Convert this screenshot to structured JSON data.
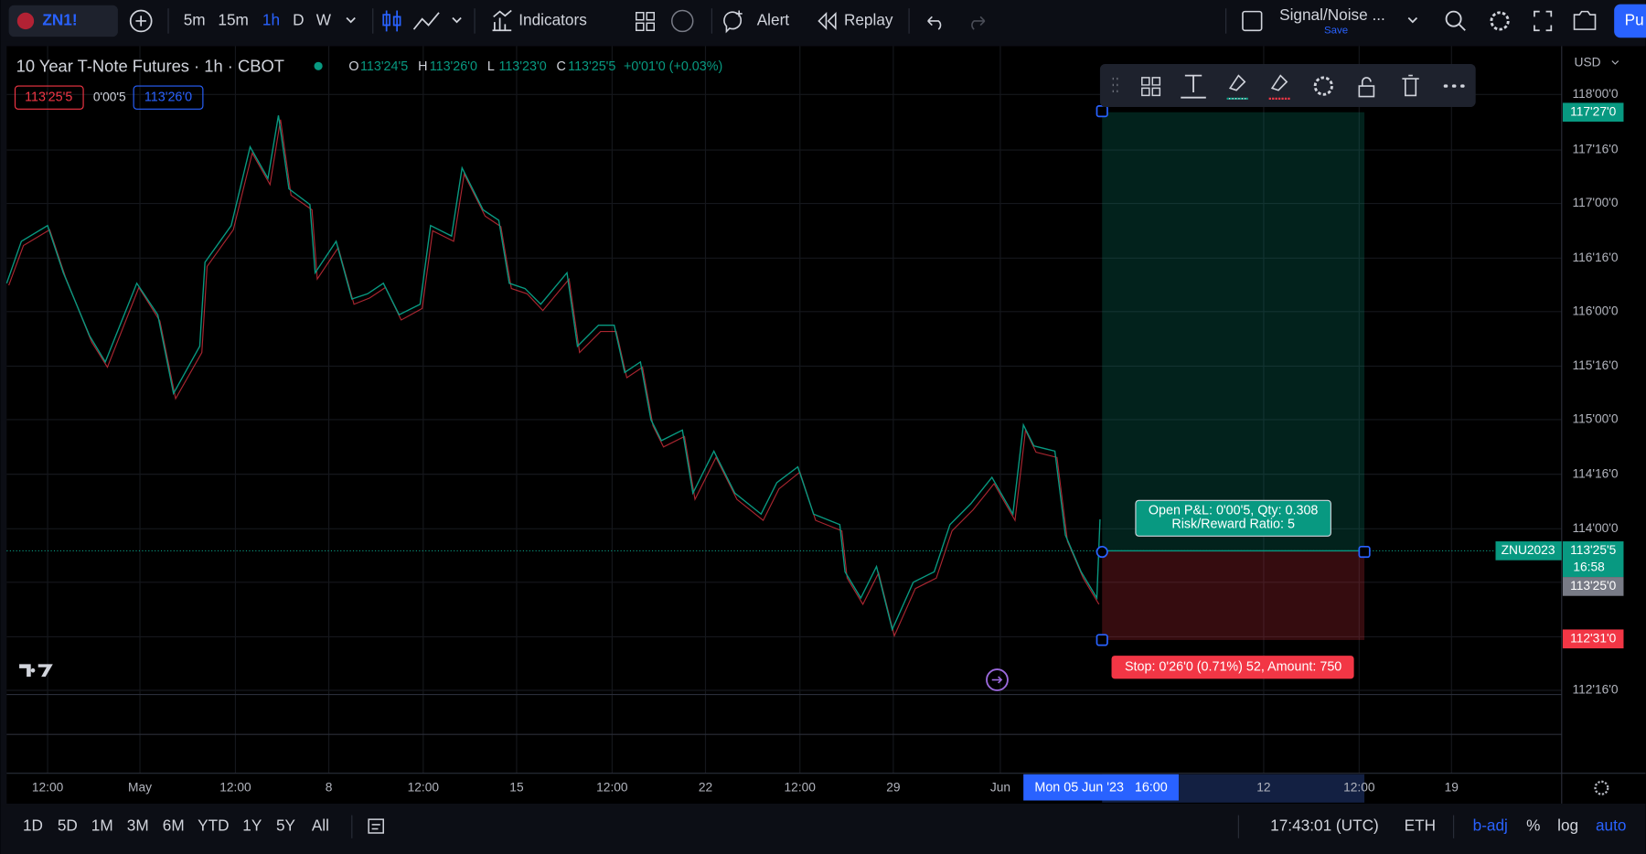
{
  "toolbar": {
    "symbol": "ZN1!",
    "intervals": [
      "5m",
      "15m",
      "1h",
      "D",
      "W"
    ],
    "indicators": "Indicators",
    "alert": "Alert",
    "replay": "Replay",
    "layout_name": "Signal/Noise ...",
    "save": "Save",
    "publish": "Pu"
  },
  "legend": {
    "title": "10 Year T-Note Futures · 1h · CBOT",
    "open_label": "O",
    "open": "113'24'5",
    "high_label": "H",
    "high": "113'26'0",
    "low_label": "L",
    "low": "113'23'0",
    "close_label": "C",
    "close": "113'25'5",
    "change": "+0'01'0 (+0.03%)",
    "bid": "113'25'5",
    "spread": "0'00'5",
    "ask": "113'26'0"
  },
  "price_axis": {
    "currency": "USD",
    "labels": [
      "118'00'0",
      "117'16'0",
      "117'00'0",
      "116'16'0",
      "116'00'0",
      "115'16'0",
      "115'00'0",
      "114'16'0",
      "114'00'0",
      "112'16'0"
    ],
    "target": "117'27'0",
    "contract": "ZNU2023",
    "last": "113'25'5",
    "countdown": "16:58",
    "entry": "113'25'0",
    "stop": "112'31'0"
  },
  "position": {
    "info_line1": "Open P&L: 0'00'5, Qty: 0.308",
    "info_line2": "Risk/Reward Ratio: 5",
    "stop_label": "Stop: 0'26'0 (0.71%) 52, Amount: 750"
  },
  "time_axis": {
    "labels": [
      "12:00",
      "May",
      "12:00",
      "8",
      "12:00",
      "15",
      "12:00",
      "22",
      "12:00",
      "29",
      "Jun",
      "12",
      "12:00",
      "19"
    ],
    "crosshair": "Mon 05 Jun '23   16:00"
  },
  "bottom_bar": {
    "ranges": [
      "1D",
      "5D",
      "1M",
      "3M",
      "6M",
      "YTD",
      "1Y",
      "5Y",
      "All"
    ],
    "clock": "17:43:01 (UTC)",
    "session": "ETH",
    "options": [
      "b-adj",
      "%",
      "log",
      "auto"
    ]
  }
}
